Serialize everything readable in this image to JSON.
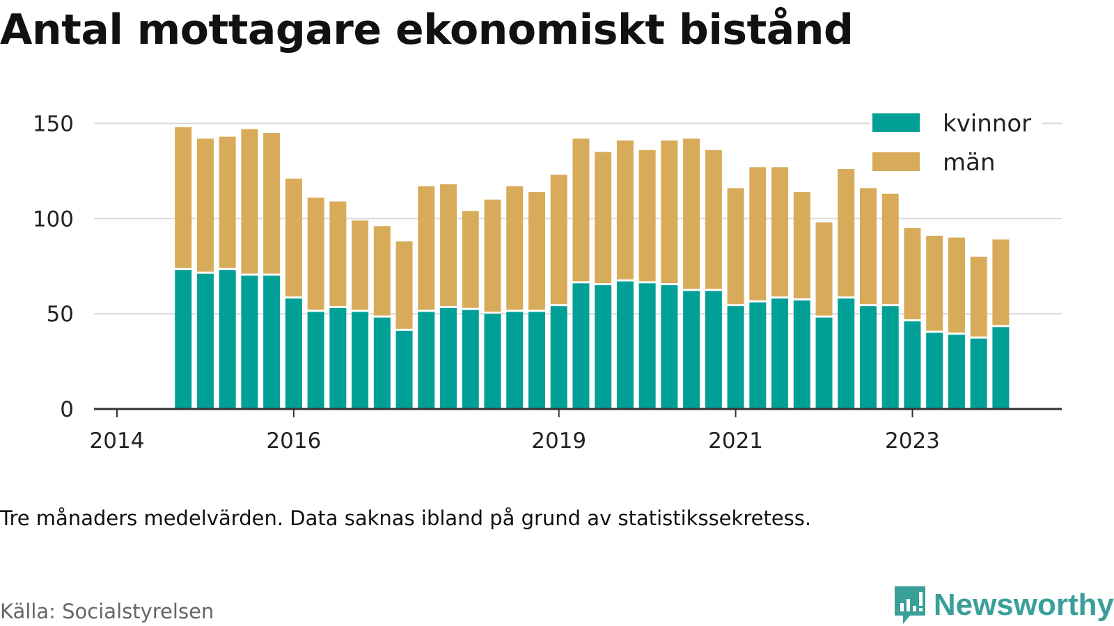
{
  "title": "Antal mottagare ekonomiskt bistånd",
  "note": "Tre månaders medelvärden. Data saknas ibland på grund av statistikssekretess.",
  "source": "Källa: Socialstyrelsen",
  "brand": "Newsworthy",
  "colors": {
    "kvinnor": "#00a096",
    "man": "#d8ab5a",
    "grid": "#d9d9d9",
    "axis": "#333333",
    "brand": "#3a9f99"
  },
  "chart_data": {
    "type": "bar",
    "stacked": true,
    "x_ticks": [
      {
        "label": "2014",
        "x": 2014.0
      },
      {
        "label": "2016",
        "x": 2016.0
      },
      {
        "label": "2019",
        "x": 2019.0
      },
      {
        "label": "2021",
        "x": 2021.0
      },
      {
        "label": "2023",
        "x": 2023.0
      }
    ],
    "y_ticks": [
      0,
      50,
      100,
      150
    ],
    "ylim": [
      0,
      160
    ],
    "xlim": [
      2013.5,
      2024.5
    ],
    "grid": true,
    "legend": {
      "placement": "top-right",
      "entries": [
        {
          "label": "kvinnor",
          "color_key": "kvinnor"
        },
        {
          "label": "män",
          "color_key": "man"
        }
      ]
    },
    "series": [
      {
        "name": "kvinnor",
        "color_key": "kvinnor",
        "values": [
          73,
          71,
          73,
          70,
          70,
          58,
          51,
          53,
          51,
          48,
          41,
          51,
          53,
          52,
          50,
          51,
          51,
          54,
          66,
          65,
          67,
          66,
          65,
          62,
          62,
          54,
          56,
          58,
          57,
          48,
          58,
          54,
          54,
          46,
          40,
          39,
          37,
          43
        ]
      },
      {
        "name": "män",
        "color_key": "man",
        "values": [
          75,
          71,
          70,
          77,
          75,
          63,
          60,
          56,
          48,
          48,
          47,
          66,
          65,
          52,
          60,
          66,
          63,
          69,
          76,
          70,
          74,
          70,
          76,
          80,
          74,
          62,
          71,
          69,
          57,
          50,
          68,
          62,
          59,
          49,
          51,
          51,
          43,
          46
        ]
      }
    ],
    "x": [
      2014.75,
      2015.0,
      2015.25,
      2015.5,
      2015.75,
      2016.0,
      2016.25,
      2016.5,
      2016.75,
      2017.0,
      2017.25,
      2017.5,
      2017.75,
      2018.0,
      2018.25,
      2018.5,
      2018.75,
      2019.0,
      2019.25,
      2019.5,
      2019.75,
      2020.0,
      2020.25,
      2020.5,
      2020.75,
      2021.0,
      2021.25,
      2021.5,
      2021.75,
      2022.0,
      2022.25,
      2022.5,
      2022.75,
      2023.0,
      2023.25,
      2023.5,
      2023.75,
      2024.0
    ]
  }
}
